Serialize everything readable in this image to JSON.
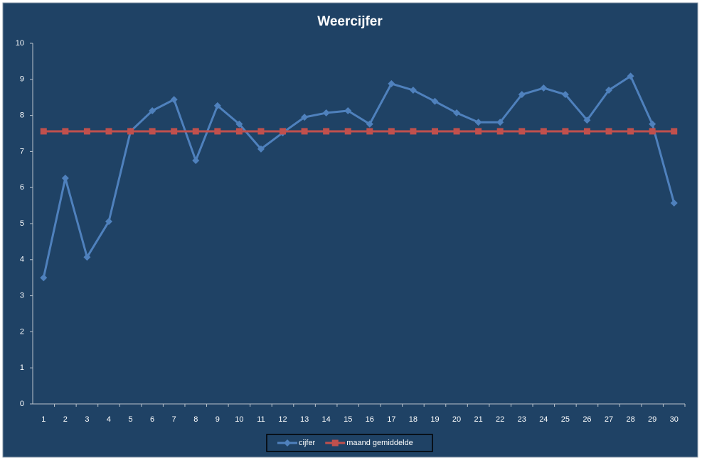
{
  "chart_data": {
    "type": "line",
    "title": "Weercijfer",
    "categories": [
      "1",
      "2",
      "3",
      "4",
      "5",
      "6",
      "7",
      "8",
      "9",
      "10",
      "11",
      "12",
      "13",
      "14",
      "15",
      "16",
      "17",
      "18",
      "19",
      "20",
      "21",
      "22",
      "23",
      "24",
      "25",
      "26",
      "27",
      "28",
      "29",
      "30"
    ],
    "series": [
      {
        "name": "cijfer",
        "color": "#4f81bd",
        "marker": "diamond",
        "values": [
          3.5,
          6.26,
          4.07,
          5.06,
          7.56,
          8.13,
          8.44,
          6.75,
          8.27,
          7.76,
          7.07,
          7.52,
          7.95,
          8.07,
          8.13,
          7.76,
          8.88,
          8.7,
          8.39,
          8.07,
          7.81,
          7.81,
          8.58,
          8.76,
          8.58,
          7.87,
          8.7,
          9.09,
          7.76,
          5.57
        ]
      },
      {
        "name": "maand gemiddelde",
        "color": "#c0504d",
        "marker": "square",
        "values": [
          7.56,
          7.56,
          7.56,
          7.56,
          7.56,
          7.56,
          7.56,
          7.56,
          7.56,
          7.56,
          7.56,
          7.56,
          7.56,
          7.56,
          7.56,
          7.56,
          7.56,
          7.56,
          7.56,
          7.56,
          7.56,
          7.56,
          7.56,
          7.56,
          7.56,
          7.56,
          7.56,
          7.56,
          7.56,
          7.56
        ]
      }
    ],
    "ylim": [
      0,
      10
    ],
    "yticks": [
      0,
      1,
      2,
      3,
      4,
      5,
      6,
      7,
      8,
      9,
      10
    ],
    "grid": false,
    "legend": "bottom"
  }
}
